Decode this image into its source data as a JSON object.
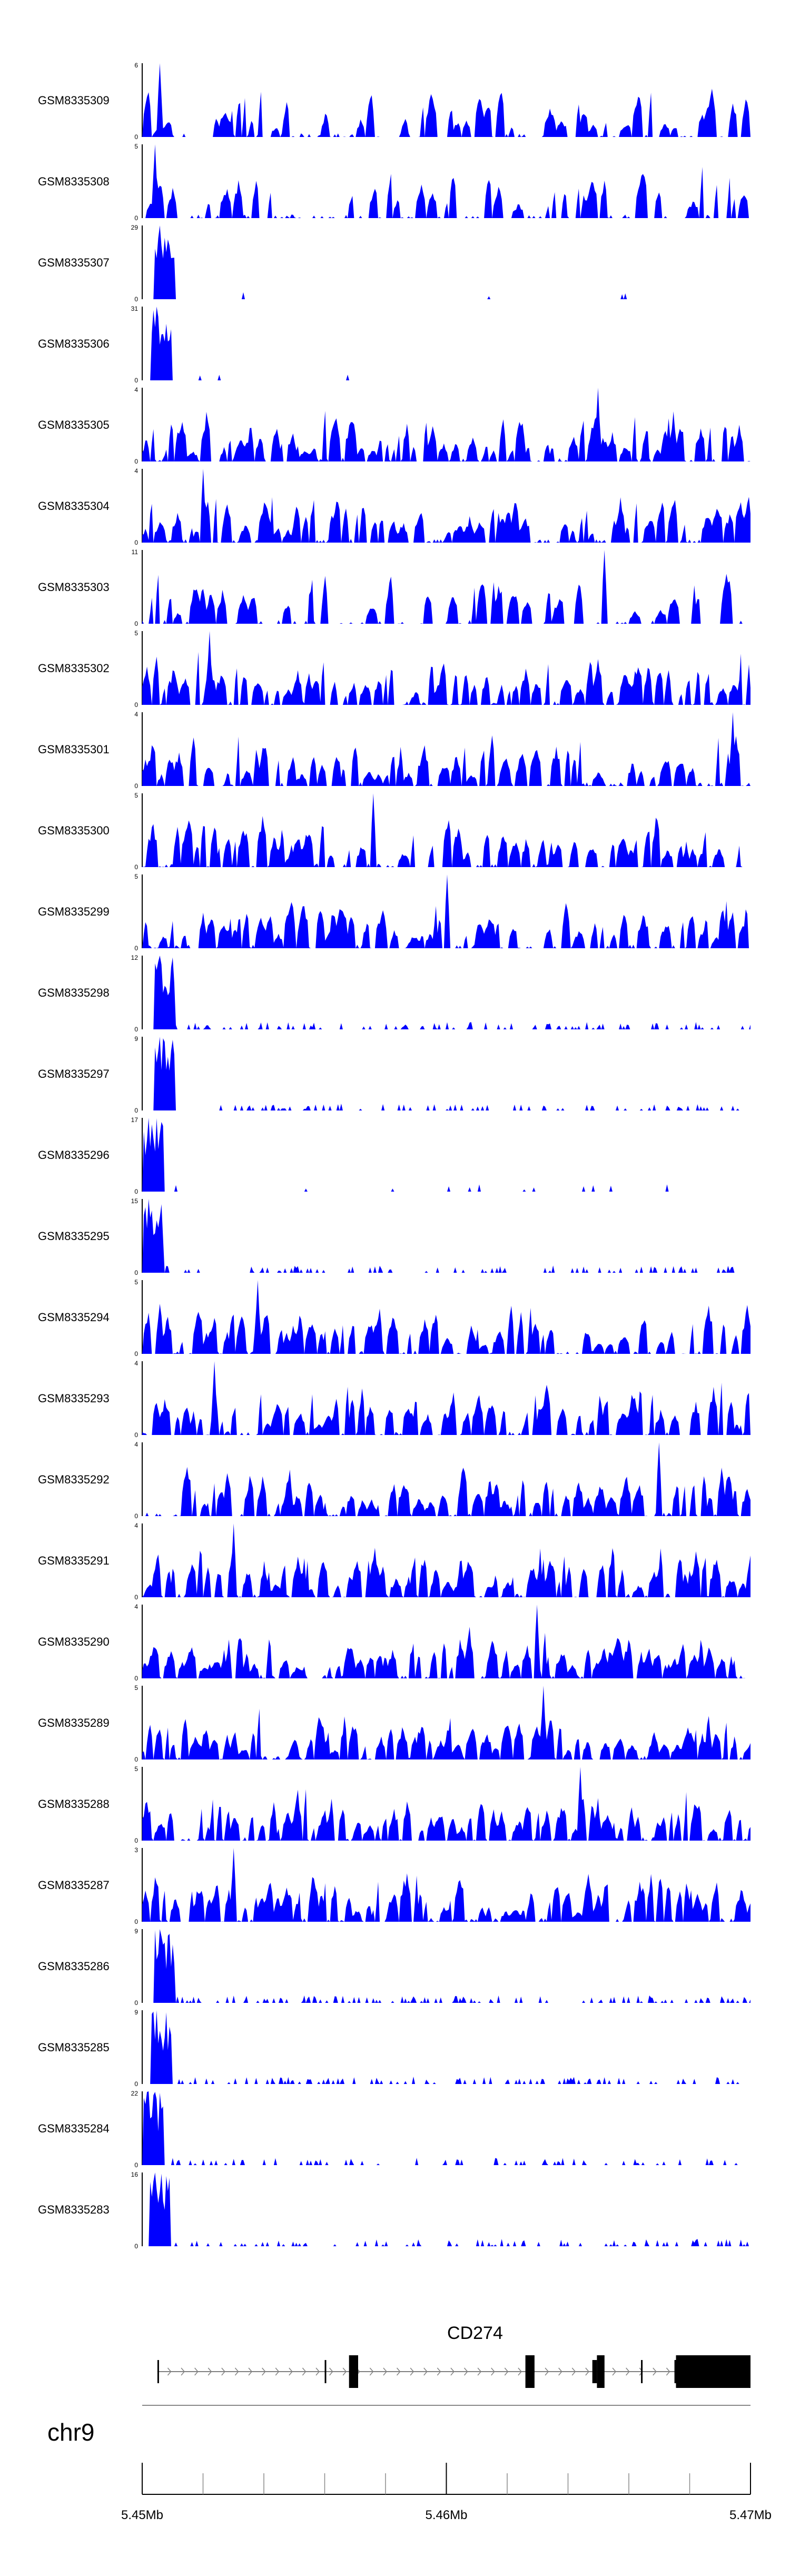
{
  "colors": {
    "track_fill": "#0000ff",
    "axis": "#000000",
    "gene": "#000000",
    "intron_line": "#808080"
  },
  "chart_data": {
    "type": "area",
    "title": "",
    "chromosome": "chr9",
    "xlim": [
      5450000,
      5470000
    ],
    "x_tick_labels": [
      "5.45Mb",
      "5.46Mb",
      "5.47Mb"
    ],
    "x_tick_values": [
      5450000,
      5460000,
      5470000
    ],
    "tracks": [
      {
        "name": "GSM8335309",
        "ymax": 6,
        "ylim_label_top": "6",
        "ylim_label_bottom": "0",
        "profile": "uniform",
        "peak": 6,
        "peak_at": 0.03,
        "density": 0.45,
        "seed": 309
      },
      {
        "name": "GSM8335308",
        "ymax": 5,
        "ylim_label_top": "5",
        "ylim_label_bottom": "0",
        "profile": "uniform",
        "peak": 5,
        "peak_at": 0.02,
        "density": 0.45,
        "seed": 308
      },
      {
        "name": "GSM8335307",
        "ymax": 29,
        "ylim_label_top": "29",
        "ylim_label_bottom": "0",
        "profile": "promoter",
        "peak": 29,
        "peak_at": 0.03,
        "density": 0.04,
        "seed": 307
      },
      {
        "name": "GSM8335306",
        "ymax": 31,
        "ylim_label_top": "31",
        "ylim_label_bottom": "0",
        "profile": "promoter",
        "peak": 31,
        "peak_at": 0.025,
        "density": 0.03,
        "seed": 306
      },
      {
        "name": "GSM8335305",
        "ymax": 4,
        "ylim_label_top": "4",
        "ylim_label_bottom": "0",
        "profile": "dense",
        "peak": 4,
        "peak_at": 0.75,
        "density": 0.85,
        "seed": 305
      },
      {
        "name": "GSM8335304",
        "ymax": 4,
        "ylim_label_top": "4",
        "ylim_label_bottom": "0",
        "profile": "dense",
        "peak": 4,
        "peak_at": 0.1,
        "density": 0.8,
        "seed": 304
      },
      {
        "name": "GSM8335303",
        "ymax": 11,
        "ylim_label_top": "11",
        "ylim_label_bottom": "0",
        "profile": "sparse",
        "peak": 11,
        "peak_at": 0.76,
        "density": 0.35,
        "seed": 303
      },
      {
        "name": "GSM8335302",
        "ymax": 5,
        "ylim_label_top": "5",
        "ylim_label_bottom": "0",
        "profile": "dense",
        "peak": 5,
        "peak_at": 0.11,
        "density": 0.75,
        "seed": 302
      },
      {
        "name": "GSM8335301",
        "ymax": 4,
        "ylim_label_top": "4",
        "ylim_label_bottom": "0",
        "profile": "dense",
        "peak": 4,
        "peak_at": 0.97,
        "density": 0.8,
        "seed": 301
      },
      {
        "name": "GSM8335300",
        "ymax": 5,
        "ylim_label_top": "5",
        "ylim_label_bottom": "0",
        "profile": "dense",
        "peak": 5,
        "peak_at": 0.38,
        "density": 0.65,
        "seed": 300
      },
      {
        "name": "GSM8335299",
        "ymax": 5,
        "ylim_label_top": "5",
        "ylim_label_bottom": "0",
        "profile": "dense",
        "peak": 5,
        "peak_at": 0.5,
        "density": 0.75,
        "seed": 299
      },
      {
        "name": "GSM8335298",
        "ymax": 12,
        "ylim_label_top": "12",
        "ylim_label_bottom": "0",
        "profile": "promoter",
        "peak": 12,
        "peak_at": 0.03,
        "density": 0.45,
        "seed": 298
      },
      {
        "name": "GSM8335297",
        "ymax": 9,
        "ylim_label_top": "9",
        "ylim_label_bottom": "0",
        "profile": "promoter",
        "peak": 9,
        "peak_at": 0.03,
        "density": 0.4,
        "seed": 297
      },
      {
        "name": "GSM8335296",
        "ymax": 17,
        "ylim_label_top": "17",
        "ylim_label_bottom": "0",
        "profile": "promoter",
        "peak": 17,
        "peak_at": 0.01,
        "density": 0.05,
        "seed": 296
      },
      {
        "name": "GSM8335295",
        "ymax": 15,
        "ylim_label_top": "15",
        "ylim_label_bottom": "0",
        "profile": "promoter",
        "peak": 15,
        "peak_at": 0.01,
        "density": 0.35,
        "seed": 295
      },
      {
        "name": "GSM8335294",
        "ymax": 5,
        "ylim_label_top": "5",
        "ylim_label_bottom": "0",
        "profile": "dense",
        "peak": 5,
        "peak_at": 0.19,
        "density": 0.7,
        "seed": 294
      },
      {
        "name": "GSM8335293",
        "ymax": 4,
        "ylim_label_top": "4",
        "ylim_label_bottom": "0",
        "profile": "dense",
        "peak": 4,
        "peak_at": 0.12,
        "density": 0.8,
        "seed": 293
      },
      {
        "name": "GSM8335292",
        "ymax": 4,
        "ylim_label_top": "4",
        "ylim_label_bottom": "0",
        "profile": "dense",
        "peak": 4,
        "peak_at": 0.85,
        "density": 0.8,
        "seed": 292
      },
      {
        "name": "GSM8335291",
        "ymax": 4,
        "ylim_label_top": "4",
        "ylim_label_bottom": "0",
        "profile": "dense",
        "peak": 4,
        "peak_at": 0.15,
        "density": 0.85,
        "seed": 291
      },
      {
        "name": "GSM8335290",
        "ymax": 4,
        "ylim_label_top": "4",
        "ylim_label_bottom": "0",
        "profile": "dense",
        "peak": 4,
        "peak_at": 0.65,
        "density": 0.85,
        "seed": 290
      },
      {
        "name": "GSM8335289",
        "ymax": 5,
        "ylim_label_top": "5",
        "ylim_label_bottom": "0",
        "profile": "dense",
        "peak": 5,
        "peak_at": 0.66,
        "density": 0.8,
        "seed": 289
      },
      {
        "name": "GSM8335288",
        "ymax": 5,
        "ylim_label_top": "5",
        "ylim_label_bottom": "0",
        "profile": "dense",
        "peak": 5,
        "peak_at": 0.72,
        "density": 0.85,
        "seed": 288
      },
      {
        "name": "GSM8335287",
        "ymax": 3,
        "ylim_label_top": "3",
        "ylim_label_bottom": "0",
        "profile": "dense",
        "peak": 3,
        "peak_at": 0.15,
        "density": 0.95,
        "seed": 287
      },
      {
        "name": "GSM8335286",
        "ymax": 9,
        "ylim_label_top": "9",
        "ylim_label_bottom": "0",
        "profile": "promoter",
        "peak": 9,
        "peak_at": 0.03,
        "density": 0.55,
        "seed": 286
      },
      {
        "name": "GSM8335285",
        "ymax": 9,
        "ylim_label_top": "9",
        "ylim_label_bottom": "0",
        "profile": "promoter",
        "peak": 9,
        "peak_at": 0.025,
        "density": 0.5,
        "seed": 285
      },
      {
        "name": "GSM8335284",
        "ymax": 22,
        "ylim_label_top": "22",
        "ylim_label_bottom": "0",
        "profile": "promoter",
        "peak": 22,
        "peak_at": 0.01,
        "density": 0.35,
        "seed": 284
      },
      {
        "name": "GSM8335283",
        "ymax": 16,
        "ylim_label_top": "16",
        "ylim_label_bottom": "0",
        "profile": "promoter",
        "peak": 16,
        "peak_at": 0.02,
        "density": 0.45,
        "seed": 283
      }
    ],
    "gene": {
      "name": "CD274",
      "strand": "+",
      "start": 5450500,
      "end": 5470000,
      "exons": [
        {
          "start": 5450500,
          "end": 5450550,
          "type": "utr"
        },
        {
          "start": 5456000,
          "end": 5456050,
          "type": "utr"
        },
        {
          "start": 5456800,
          "end": 5457100,
          "type": "cds"
        },
        {
          "start": 5462600,
          "end": 5462900,
          "type": "cds"
        },
        {
          "start": 5464800,
          "end": 5464950,
          "type": "utr"
        },
        {
          "start": 5464950,
          "end": 5465200,
          "type": "cds"
        },
        {
          "start": 5466400,
          "end": 5466450,
          "type": "utr"
        },
        {
          "start": 5467500,
          "end": 5467550,
          "type": "utr"
        },
        {
          "start": 5467550,
          "end": 5470000,
          "type": "cds"
        }
      ]
    }
  }
}
